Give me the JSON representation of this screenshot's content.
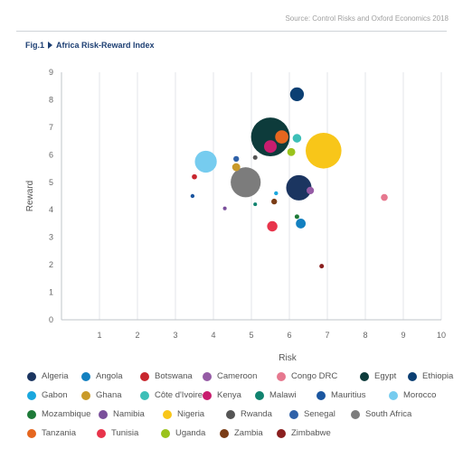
{
  "source": "Source: Control Risks and Oxford Economics 2018",
  "figure": {
    "label": "Fig.1",
    "title": "Africa Risk-Reward Index",
    "arrow_icon": "triangle-right-icon"
  },
  "chart_data": {
    "type": "scatter",
    "title": "Africa Risk-Reward Index",
    "xlabel": "Risk",
    "ylabel": "Reward",
    "xlim": [
      0,
      10
    ],
    "ylim": [
      0,
      9
    ],
    "x_ticks": [
      "1",
      "2",
      "3",
      "4",
      "5",
      "6",
      "7",
      "8",
      "9",
      "10"
    ],
    "y_ticks": [
      "0",
      "1",
      "2",
      "3",
      "4",
      "5",
      "6",
      "7",
      "8",
      "9"
    ],
    "grid": "vertical",
    "legend_position": "bottom",
    "size_encoding": "relative bubble size",
    "series": [
      {
        "name": "Algeria",
        "color": "#1b3560",
        "x": 6.25,
        "y": 4.8,
        "size": 4.2
      },
      {
        "name": "Angola",
        "color": "#1380c0",
        "x": 6.3,
        "y": 3.5,
        "size": 1.5
      },
      {
        "name": "Botswana",
        "color": "#c8262e",
        "x": 3.5,
        "y": 5.2,
        "size": 0.7
      },
      {
        "name": "Cameroon",
        "color": "#955ba5",
        "x": 6.55,
        "y": 4.7,
        "size": 1.1
      },
      {
        "name": "Congo DRC",
        "color": "#e6788f",
        "x": 8.5,
        "y": 4.45,
        "size": 1.0
      },
      {
        "name": "Egypt",
        "color": "#0d3b3b",
        "x": 5.5,
        "y": 6.65,
        "size": 6.5
      },
      {
        "name": "Ethiopia",
        "color": "#0b3f73",
        "x": 6.2,
        "y": 8.2,
        "size": 2.2
      },
      {
        "name": "Gabon",
        "color": "#1aa7de",
        "x": 5.65,
        "y": 4.6,
        "size": 0.5
      },
      {
        "name": "Ghana",
        "color": "#c99a2a",
        "x": 4.6,
        "y": 5.55,
        "size": 1.2
      },
      {
        "name": "Côte d'Ivoire",
        "color": "#3dbfb7",
        "x": 6.2,
        "y": 6.6,
        "size": 1.3
      },
      {
        "name": "Kenya",
        "color": "#c81d6e",
        "x": 5.5,
        "y": 6.3,
        "size": 2.0
      },
      {
        "name": "Malawi",
        "color": "#11836f",
        "x": 5.1,
        "y": 4.2,
        "size": 0.45
      },
      {
        "name": "Mauritius",
        "color": "#1b56a0",
        "x": 3.45,
        "y": 4.5,
        "size": 0.5
      },
      {
        "name": "Morocco",
        "color": "#76ccef",
        "x": 3.8,
        "y": 5.75,
        "size": 3.6
      },
      {
        "name": "Mozambique",
        "color": "#1e7a38",
        "x": 6.2,
        "y": 3.75,
        "size": 0.6
      },
      {
        "name": "Namibia",
        "color": "#7a4f9b",
        "x": 4.3,
        "y": 4.05,
        "size": 0.45
      },
      {
        "name": "Nigeria",
        "color": "#f8c619",
        "x": 6.9,
        "y": 6.15,
        "size": 6.0
      },
      {
        "name": "Rwanda",
        "color": "#555555",
        "x": 5.1,
        "y": 5.9,
        "size": 0.6
      },
      {
        "name": "Senegal",
        "color": "#2f61a8",
        "x": 4.6,
        "y": 5.85,
        "size": 0.8
      },
      {
        "name": "South Africa",
        "color": "#7c7c7c",
        "x": 4.85,
        "y": 5.0,
        "size": 5.0
      },
      {
        "name": "Tanzania",
        "color": "#e5661f",
        "x": 5.8,
        "y": 6.65,
        "size": 2.1
      },
      {
        "name": "Tunisia",
        "color": "#e8344b",
        "x": 5.55,
        "y": 3.4,
        "size": 1.6
      },
      {
        "name": "Uganda",
        "color": "#9ac31c",
        "x": 6.05,
        "y": 6.1,
        "size": 1.2
      },
      {
        "name": "Zambia",
        "color": "#7a3c16",
        "x": 5.6,
        "y": 4.3,
        "size": 0.8
      },
      {
        "name": "Zimbabwe",
        "color": "#8a1f1f",
        "x": 6.85,
        "y": 1.95,
        "size": 0.6
      }
    ]
  }
}
